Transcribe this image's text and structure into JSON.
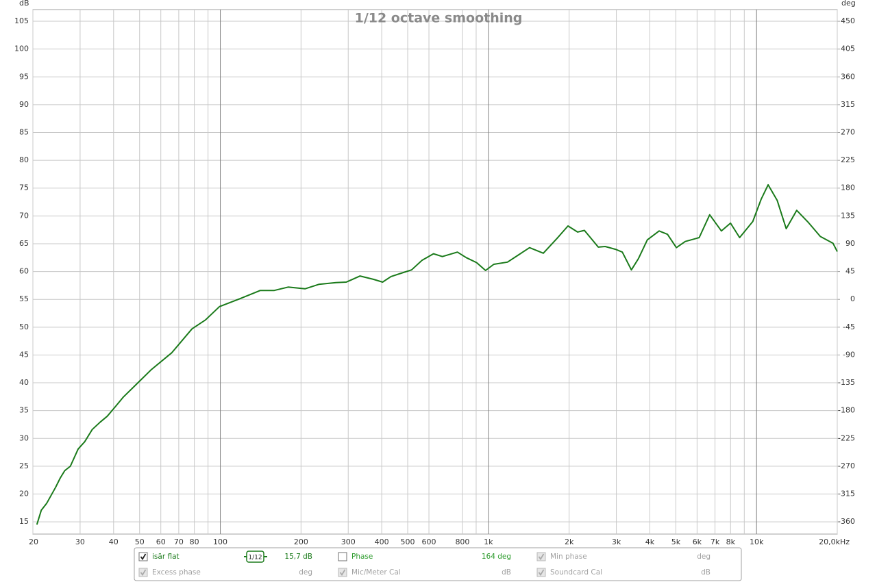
{
  "chart_data": {
    "type": "line",
    "title": "1/12 octave smoothing",
    "ylabel": "dB",
    "y2label": "deg",
    "log_x": true,
    "grid": true,
    "xlim": [
      20,
      20000
    ],
    "xticks": [
      20,
      30,
      40,
      50,
      60,
      70,
      80,
      100,
      200,
      300,
      400,
      500,
      600,
      800,
      {
        "value": 1000,
        "label": "1k"
      },
      {
        "value": 2000,
        "label": "2k"
      },
      {
        "value": 3000,
        "label": "3k"
      },
      {
        "value": 4000,
        "label": "4k"
      },
      {
        "value": 5000,
        "label": "5k"
      },
      {
        "value": 6000,
        "label": "6k"
      },
      {
        "value": 7000,
        "label": "7k"
      },
      {
        "value": 8000,
        "label": "8k"
      },
      {
        "value": 10000,
        "label": "10k"
      },
      {
        "value": 20000,
        "label": "20,0kHz"
      }
    ],
    "x_minor_ticks": [
      90,
      900,
      9000
    ],
    "ylim": [
      12.8,
      107.1
    ],
    "yticks": [
      15,
      20,
      25,
      30,
      35,
      40,
      45,
      50,
      55,
      60,
      65,
      70,
      75,
      80,
      85,
      90,
      95,
      100,
      105
    ],
    "y2lim": [
      -379.8,
      468.9
    ],
    "y2ticks": [
      -360,
      -315,
      -270,
      -225,
      -180,
      -135,
      -90,
      -45,
      0,
      45,
      90,
      135,
      180,
      225,
      270,
      315,
      360,
      405,
      450
    ],
    "x": [
      20.7,
      21.5,
      22.5,
      24.3,
      25.3,
      26.3,
      27.6,
      29.5,
      31.2,
      33.3,
      35.6,
      37.9,
      40.6,
      43.4,
      49.8,
      55.1,
      65.9,
      78.4,
      88,
      99.3,
      118,
      141,
      159,
      179,
      207,
      233,
      270,
      295,
      332,
      373,
      403,
      433,
      473,
      517,
      565,
      624,
      673,
      766,
      827,
      904,
      976,
      1047,
      1178,
      1287,
      1424,
      1602,
      1805,
      1981,
      2151,
      2281,
      2569,
      2724,
      2978,
      3158,
      3414,
      3624,
      3915,
      4332,
      4654,
      5025,
      5421,
      6112,
      6685,
      7395,
      7997,
      8646,
      9682,
      10403,
      11043,
      11936,
      12901,
      14117,
      15625,
      17294,
      19270,
      20000
    ],
    "series": [
      {
        "name": "isär flat",
        "color": "#1a7a1a",
        "values": [
          14.5,
          17.1,
          18.3,
          21.2,
          22.9,
          24.2,
          25.0,
          28.1,
          29.4,
          31.6,
          32.9,
          34.0,
          35.7,
          37.4,
          40.2,
          42.3,
          45.4,
          49.7,
          51.3,
          53.7,
          55.1,
          56.6,
          56.6,
          57.2,
          56.9,
          57.7,
          58.0,
          58.1,
          59.2,
          58.6,
          58.1,
          59.1,
          59.7,
          60.3,
          62.0,
          63.2,
          62.7,
          63.5,
          62.5,
          61.6,
          60.2,
          61.3,
          61.7,
          62.9,
          64.3,
          63.3,
          66.0,
          68.2,
          67.1,
          67.4,
          64.4,
          64.5,
          64.0,
          63.5,
          60.3,
          62.3,
          65.7,
          67.3,
          66.7,
          64.3,
          65.4,
          66.1,
          70.2,
          67.3,
          68.7,
          66.1,
          69.0,
          73.0,
          75.6,
          72.8,
          67.7,
          71.0,
          68.8,
          66.3,
          65.1,
          63.6
        ]
      }
    ]
  },
  "legend_panel": {
    "smoothing": "1/12",
    "readout": "15,7 dB",
    "checked": true,
    "items": [
      {
        "label": "Phase",
        "readout": "164 deg",
        "checked": false,
        "enabled": true
      },
      {
        "label": "Min phase",
        "readout": "deg",
        "checked": true,
        "enabled": false
      },
      {
        "label": "Excess phase",
        "readout": "deg",
        "checked": true,
        "enabled": false
      },
      {
        "label": "Mic/Meter Cal",
        "readout": "dB",
        "checked": true,
        "enabled": false
      },
      {
        "label": "Soundcard Cal",
        "readout": "dB",
        "checked": true,
        "enabled": false
      }
    ]
  }
}
